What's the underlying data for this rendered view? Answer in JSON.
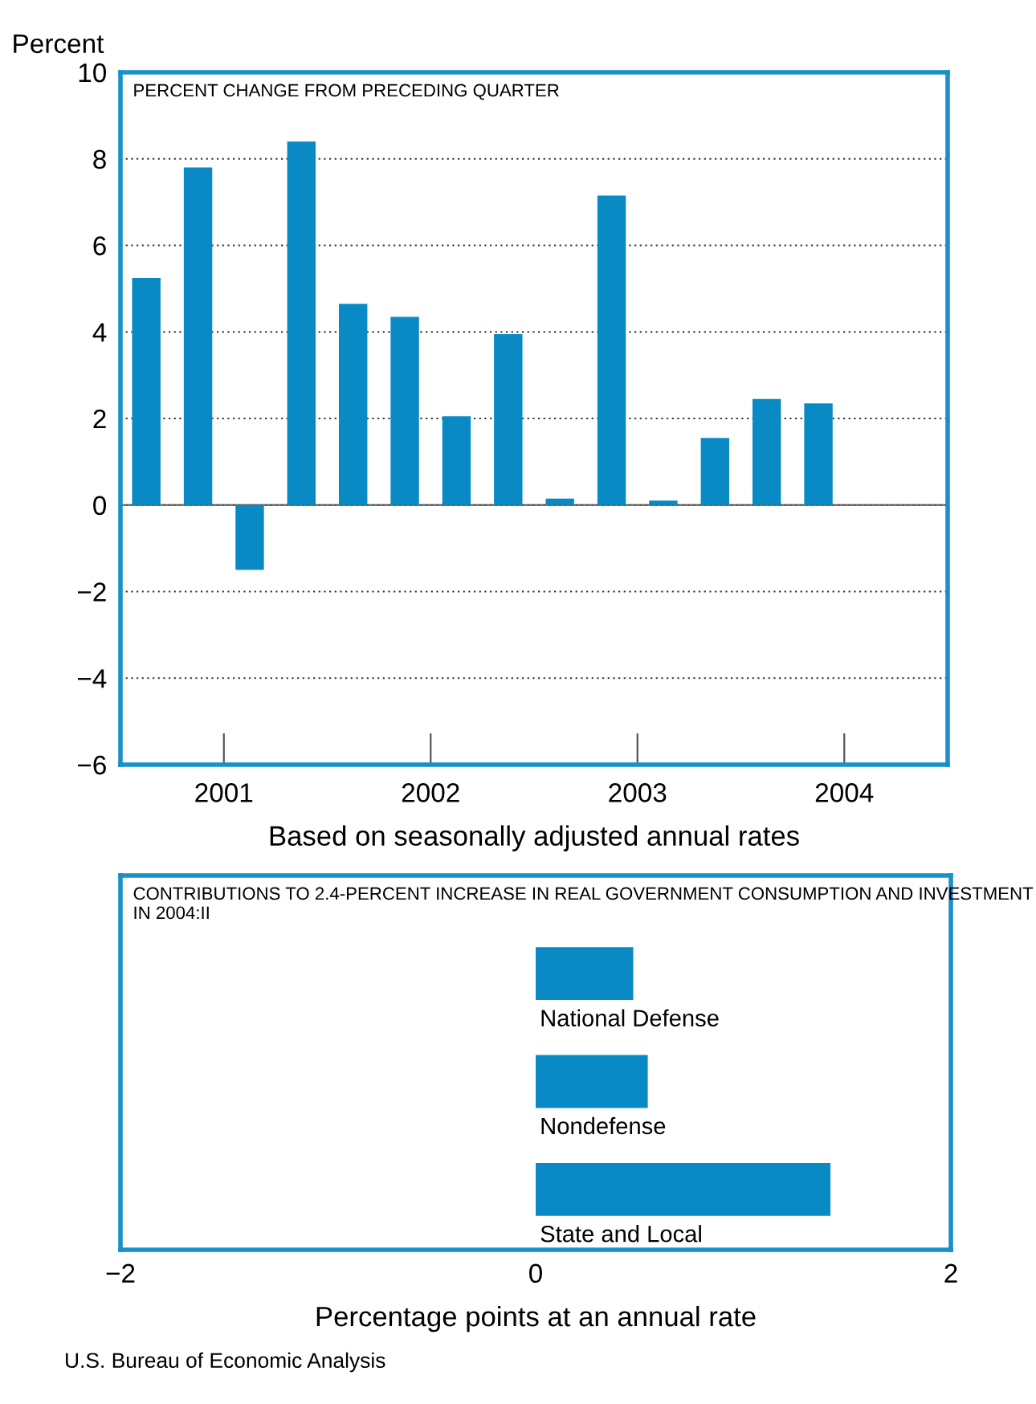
{
  "chart_data": [
    {
      "type": "bar",
      "title": "PERCENT CHANGE FROM PRECEDING QUARTER",
      "ylabel": "Percent",
      "xlabel": "Based on seasonally adjusted annual rates",
      "x": [
        2001.125,
        2001.375,
        2001.625,
        2001.875,
        2002.125,
        2002.375,
        2002.625,
        2002.875,
        2003.125,
        2003.375,
        2003.625,
        2003.875,
        2004.125,
        2004.375
      ],
      "values": [
        5.25,
        7.8,
        -1.5,
        8.4,
        4.65,
        4.35,
        2.05,
        3.95,
        0.15,
        7.15,
        0.1,
        1.55,
        2.45,
        2.35
      ],
      "color": "#0a8ac4",
      "xlim": [
        2001,
        2005
      ],
      "xticks": [
        {
          "value": 2001.5,
          "label": "2001"
        },
        {
          "value": 2002.5,
          "label": "2002"
        },
        {
          "value": 2003.5,
          "label": "2003"
        },
        {
          "value": 2004.5,
          "label": "2004"
        }
      ],
      "ylim": [
        -6,
        10
      ],
      "yticks": [
        {
          "value": -6,
          "label": "−6"
        },
        {
          "value": -4,
          "label": "−4"
        },
        {
          "value": -2,
          "label": "−2"
        },
        0,
        2,
        4,
        6,
        8,
        10
      ],
      "grid": "y"
    },
    {
      "type": "bar",
      "orientation": "horizontal",
      "title": "CONTRIBUTIONS TO 2.4-PERCENT INCREASE IN REAL GOVERNMENT CONSUMPTION AND INVESTMENT IN 2004:II",
      "xlabel": "Percentage points at an annual rate",
      "categories": [
        "National Defense",
        "Nondefense",
        "State and Local"
      ],
      "values": [
        0.47,
        0.54,
        1.42
      ],
      "color": "#0a8ac4",
      "xlim": [
        -2,
        2
      ],
      "xticks": [
        {
          "value": -2,
          "label": "−2"
        },
        0,
        2
      ],
      "annotations": [
        "U.S. Bureau of Economic Analysis"
      ]
    }
  ]
}
